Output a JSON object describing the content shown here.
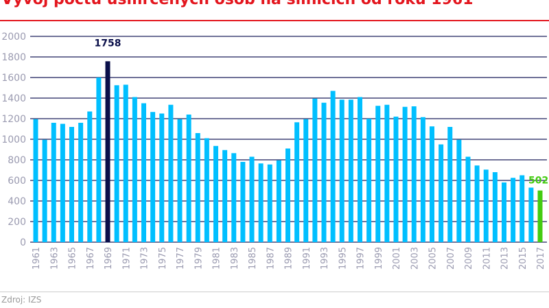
{
  "title": "Vývoj počtu usmrcených osob na silnicích od roku 1961",
  "source": "Zdroj: IZS",
  "colors": {
    "bar": "#00bfff",
    "highlight_max": "#0a0f4a",
    "highlight_last": "#44cc11",
    "title": "#e3161e",
    "grid": "#1a1f5a",
    "ticks": "#9a9ab0"
  },
  "chart_data": {
    "type": "bar",
    "ylim": [
      0,
      2000
    ],
    "yticks": [
      0,
      200,
      400,
      600,
      800,
      1000,
      1200,
      1400,
      1600,
      1800,
      2000
    ],
    "grid": true,
    "categories": [
      1961,
      1962,
      1963,
      1964,
      1965,
      1966,
      1967,
      1968,
      1969,
      1970,
      1971,
      1972,
      1973,
      1974,
      1975,
      1976,
      1977,
      1978,
      1979,
      1980,
      1981,
      1982,
      1983,
      1984,
      1985,
      1986,
      1987,
      1988,
      1989,
      1990,
      1991,
      1992,
      1993,
      1994,
      1995,
      1996,
      1997,
      1998,
      1999,
      2000,
      2001,
      2002,
      2003,
      2004,
      2005,
      2006,
      2007,
      2008,
      2009,
      2010,
      2011,
      2012,
      2013,
      2014,
      2015,
      2016,
      2017
    ],
    "values": [
      1195,
      995,
      1160,
      1150,
      1120,
      1160,
      1270,
      1600,
      1758,
      1525,
      1530,
      1410,
      1350,
      1265,
      1250,
      1335,
      1195,
      1240,
      1060,
      1010,
      935,
      895,
      865,
      780,
      830,
      765,
      755,
      795,
      910,
      1165,
      1195,
      1395,
      1355,
      1470,
      1385,
      1385,
      1410,
      1200,
      1325,
      1335,
      1220,
      1315,
      1320,
      1215,
      1125,
      950,
      1120,
      995,
      830,
      745,
      705,
      680,
      580,
      625,
      650,
      530,
      502
    ],
    "xtick_labels": [
      "1961",
      "1963",
      "1965",
      "1967",
      "1969",
      "1971",
      "1973",
      "1975",
      "1977",
      "1979",
      "1981",
      "1983",
      "1985",
      "1987",
      "1989",
      "1991",
      "1993",
      "1995",
      "1997",
      "1999",
      "2001",
      "2003",
      "2005",
      "2007",
      "2009",
      "2011",
      "2013",
      "2015",
      "2017"
    ],
    "annotations": [
      {
        "year": 1969,
        "label": "1758"
      },
      {
        "year": 2017,
        "label": "502"
      }
    ]
  }
}
